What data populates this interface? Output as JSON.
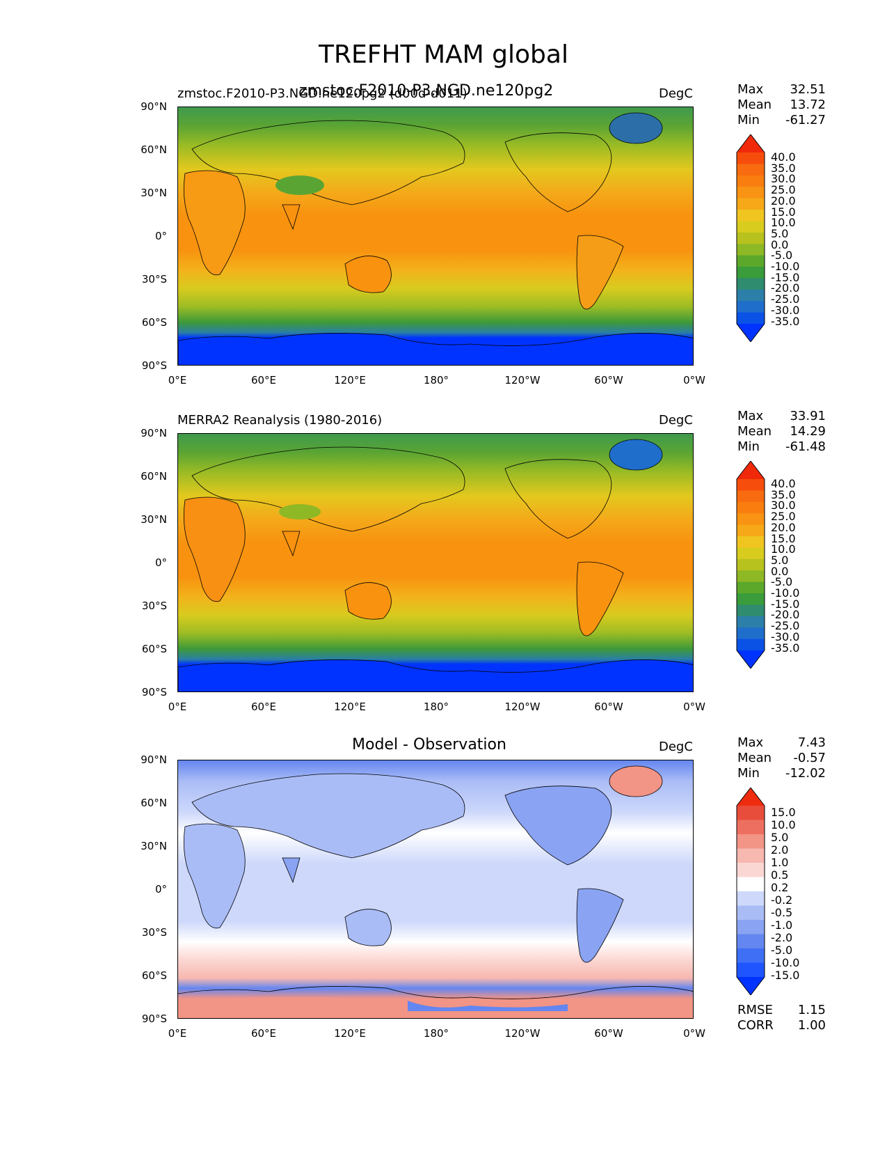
{
  "figure": {
    "title": "TREFHT MAM global"
  },
  "panels": [
    {
      "id": "test",
      "left_title": "zmstoc.F2010-P3.NGD.ne120pg2 (d00d-d011)",
      "center_title": "zmstoc.F2010-P3.NGD.ne120pg2",
      "units": "DegC",
      "stats": [
        {
          "key": "Max",
          "value": "32.51"
        },
        {
          "key": "Mean",
          "value": "13.72"
        },
        {
          "key": "Min",
          "value": "-61.27"
        }
      ],
      "colorbar_labels": [
        "40.0",
        "35.0",
        "30.0",
        "25.0",
        "20.0",
        "15.0",
        "10.0",
        "5.0",
        "0.0",
        "-5.0",
        "-10.0",
        "-15.0",
        "-20.0",
        "-25.0",
        "-30.0",
        "-35.0"
      ]
    },
    {
      "id": "ref",
      "left_title": "MERRA2 Reanalysis (1980-2016)",
      "center_title": "",
      "units": "DegC",
      "stats": [
        {
          "key": "Max",
          "value": "33.91"
        },
        {
          "key": "Mean",
          "value": "14.29"
        },
        {
          "key": "Min",
          "value": "-61.48"
        }
      ],
      "colorbar_labels": [
        "40.0",
        "35.0",
        "30.0",
        "25.0",
        "20.0",
        "15.0",
        "10.0",
        "5.0",
        "0.0",
        "-5.0",
        "-10.0",
        "-15.0",
        "-20.0",
        "-25.0",
        "-30.0",
        "-35.0"
      ]
    },
    {
      "id": "diff",
      "left_title": "",
      "center_title": "Model - Observation",
      "units": "DegC",
      "stats": [
        {
          "key": "Max",
          "value": "7.43"
        },
        {
          "key": "Mean",
          "value": "-0.57"
        },
        {
          "key": "Min",
          "value": "-12.02"
        }
      ],
      "extra_stats": [
        {
          "key": "RMSE",
          "value": "1.15"
        },
        {
          "key": "CORR",
          "value": "1.00"
        }
      ],
      "colorbar_labels": [
        "15.0",
        "10.0",
        "5.0",
        "2.0",
        "1.0",
        "0.5",
        "0.2",
        "-0.2",
        "-0.5",
        "-1.0",
        "-2.0",
        "-5.0",
        "-10.0",
        "-15.0"
      ]
    }
  ],
  "axes": {
    "lat_labels": [
      "90°N",
      "60°N",
      "30°N",
      "0°",
      "30°S",
      "60°S",
      "90°S"
    ],
    "lon_labels": [
      "0°E",
      "60°E",
      "120°E",
      "180°",
      "120°W",
      "60°W",
      "0°W"
    ]
  },
  "colors": {
    "abs_scale": [
      "#0033ff",
      "#0a52e6",
      "#1f6ecc",
      "#2c7fa8",
      "#2f8c6e",
      "#3a9c3a",
      "#5ba82b",
      "#8fb825",
      "#b8c21f",
      "#d8cc1e",
      "#f0c51f",
      "#f6a818",
      "#f99313",
      "#f97e0f",
      "#f86b10",
      "#f64d0c",
      "#f1290b"
    ],
    "diff_scale": [
      "#0033ff",
      "#1f55ff",
      "#3e6ff5",
      "#6486f0",
      "#8aa3f2",
      "#aabcf6",
      "#cdd8fb",
      "#ffffff",
      "#fbd7d3",
      "#f7b8b0",
      "#f29486",
      "#ed6f60",
      "#e84d3c",
      "#f02c10"
    ]
  }
}
